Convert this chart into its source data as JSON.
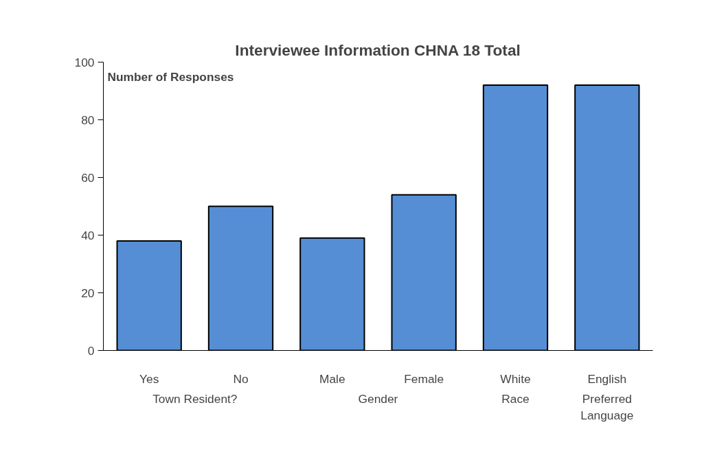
{
  "chart_data": {
    "type": "bar",
    "title": "Interviewee Information CHNA 18 Total",
    "ylabel": "Number of Responses",
    "categories": [
      "Yes",
      "No",
      "Male",
      "Female",
      "White",
      "English"
    ],
    "values": [
      38,
      50,
      39,
      54,
      92,
      92
    ],
    "color": "#558ed5",
    "ylim": [
      0,
      100
    ],
    "yticks": [
      0,
      20,
      40,
      60,
      80,
      100
    ],
    "grid": false,
    "annotations": [
      "Town Resident?",
      "Gender",
      "Race",
      "Preferred\nLanguage"
    ]
  }
}
